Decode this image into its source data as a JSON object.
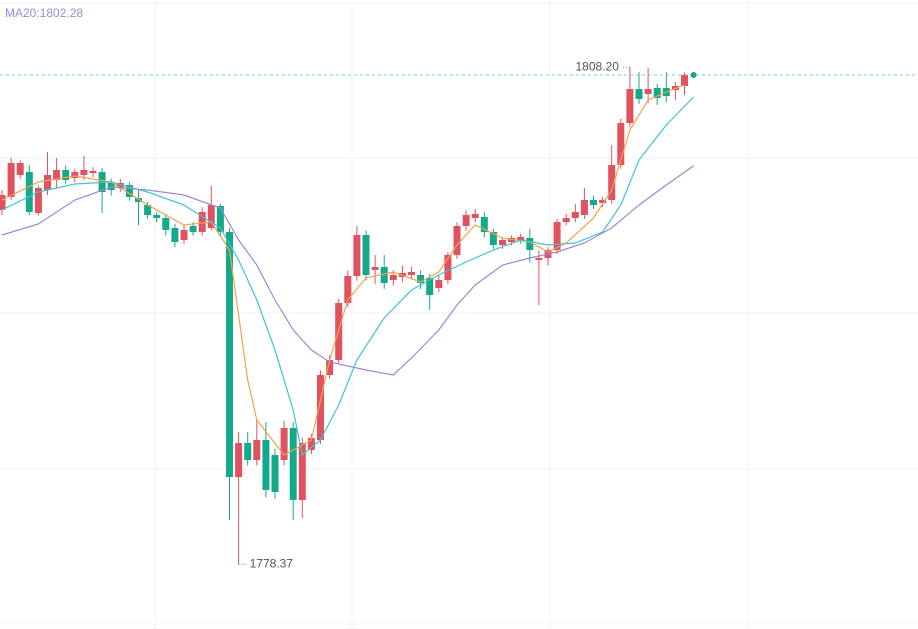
{
  "chart_data": {
    "type": "candlestick",
    "indicator_label": "MA20:1802.28",
    "xlim": [
      -0.22,
      100.66
    ],
    "ylim": [
      1774.49,
      1812.23
    ],
    "up_color": "#e0525f",
    "down_color": "#14a98b",
    "open": [
      1799.63,
      1800.41,
      1801.73,
      1801.91,
      1799.45,
      1800.83,
      1801.43,
      1802.03,
      1801.55,
      1801.73,
      1801.85,
      1801.91,
      1801.25,
      1800.95,
      1801.13,
      1800.35,
      1799.93,
      1799.33,
      1799.15,
      1798.55,
      1797.83,
      1798.67,
      1798.31,
      1798.55,
      1799.87,
      1798.31,
      1783.61,
      1785.65,
      1784.63,
      1785.83,
      1784.93,
      1784.63,
      1786.55,
      1782.23,
      1785.23,
      1785.83,
      1789.73,
      1790.63,
      1794.05,
      1795.67,
      1798.13,
      1796.03,
      1796.21,
      1795.43,
      1795.61,
      1795.73,
      1795.73,
      1795.55,
      1794.95,
      1795.43,
      1796.93,
      1798.67,
      1799.15,
      1799.21,
      1798.31,
      1797.53,
      1797.71,
      1797.83,
      1797.95,
      1796.63,
      1796.75,
      1797.23,
      1798.91,
      1799.15,
      1799.33,
      1800.23,
      1800.05,
      1800.23,
      1802.33,
      1804.85,
      1806.89,
      1806.59,
      1806.95,
      1806.95,
      1806.83,
      1807.07
    ],
    "high": [
      1800.83,
      1802.75,
      1802.6,
      1802.33,
      1801.1,
      1803.11,
      1802.75,
      1802.3,
      1802.1,
      1802.87,
      1802.2,
      1802.15,
      1801.5,
      1801.5,
      1801.3,
      1800.83,
      1800.1,
      1799.5,
      1799.4,
      1798.8,
      1798.7,
      1798.9,
      1799.8,
      1801.07,
      1800.0,
      1798.55,
      1786.31,
      1786.3,
      1787.03,
      1786.91,
      1785.3,
      1787.0,
      1786.9,
      1786.0,
      1786.2,
      1790.0,
      1790.9,
      1794.3,
      1796.0,
      1798.67,
      1798.4,
      1796.93,
      1796.93,
      1796.0,
      1796.3,
      1796.2,
      1796.0,
      1795.8,
      1795.7,
      1797.1,
      1798.9,
      1799.6,
      1799.7,
      1799.5,
      1798.5,
      1798.0,
      1798.1,
      1798.2,
      1798.5,
      1797.2,
      1797.4,
      1799.1,
      1799.4,
      1800.0,
      1800.95,
      1800.5,
      1800.4,
      1803.53,
      1805.1,
      1808.2,
      1807.9,
      1808.15,
      1807.2,
      1807.91,
      1807.3,
      1807.9
    ],
    "low": [
      1799.33,
      1800.23,
      1801.5,
      1799.33,
      1799.3,
      1800.53,
      1800.95,
      1801.2,
      1801.3,
      1801.43,
      1801.6,
      1799.45,
      1800.5,
      1800.7,
      1800.2,
      1798.73,
      1799.1,
      1798.9,
      1798.1,
      1797.4,
      1797.6,
      1798.1,
      1798.1,
      1798.43,
      1798.1,
      1781.03,
      1778.37,
      1784.3,
      1784.3,
      1782.4,
      1782.3,
      1784.3,
      1781.03,
      1781.15,
      1785.0,
      1785.6,
      1789.5,
      1790.4,
      1793.8,
      1795.4,
      1795.4,
      1795.2,
      1794.9,
      1795.1,
      1795.3,
      1795.5,
      1794.9,
      1793.63,
      1794.7,
      1795.2,
      1796.7,
      1798.4,
      1798.9,
      1798.0,
      1797.3,
      1797.3,
      1797.5,
      1797.6,
      1796.51,
      1793.93,
      1796.3,
      1797.0,
      1798.7,
      1798.9,
      1799.1,
      1799.7,
      1799.8,
      1800.0,
      1802.1,
      1804.6,
      1806.0,
      1806.05,
      1805.93,
      1806.1,
      1806.23,
      1806.53
    ],
    "close": [
      1800.53,
      1802.45,
      1802.45,
      1799.51,
      1800.95,
      1801.73,
      1802.03,
      1801.43,
      1801.91,
      1802.03,
      1801.97,
      1800.71,
      1800.83,
      1801.25,
      1800.41,
      1800.11,
      1799.33,
      1799.15,
      1798.43,
      1797.71,
      1798.43,
      1798.31,
      1799.51,
      1799.93,
      1798.31,
      1783.61,
      1785.65,
      1784.63,
      1785.83,
      1782.83,
      1782.71,
      1786.55,
      1782.23,
      1785.65,
      1785.95,
      1789.73,
      1790.63,
      1794.05,
      1795.67,
      1798.13,
      1795.73,
      1796.21,
      1795.25,
      1795.73,
      1795.85,
      1795.91,
      1795.25,
      1794.53,
      1795.43,
      1796.93,
      1798.67,
      1799.33,
      1799.39,
      1798.31,
      1797.53,
      1797.83,
      1797.95,
      1798.01,
      1797.23,
      1796.75,
      1797.23,
      1798.91,
      1799.15,
      1799.51,
      1800.23,
      1799.93,
      1800.23,
      1802.33,
      1804.85,
      1806.89,
      1806.29,
      1806.89,
      1806.35,
      1806.47,
      1807.07,
      1807.73
    ],
    "lines": [
      {
        "color": "#f4a14c",
        "x": [
          0,
          4,
          8,
          12,
          16,
          20,
          23,
          25,
          27,
          28,
          31,
          34,
          36,
          38,
          40,
          43,
          46,
          48,
          50,
          52,
          55,
          58,
          60,
          62,
          65,
          67,
          69,
          71,
          73,
          75
        ],
        "values": [
          1800.23,
          1801.31,
          1801.67,
          1801.31,
          1799.93,
          1798.73,
          1798.91,
          1797.23,
          1789.43,
          1787.03,
          1784.93,
          1785.83,
          1790.63,
          1794.23,
          1795.55,
          1795.91,
          1795.31,
          1795.91,
          1797.53,
          1798.73,
          1797.95,
          1797.71,
          1797.11,
          1797.65,
          1799.15,
          1800.83,
          1804.43,
          1806.23,
          1806.71,
          1807.13
        ]
      },
      {
        "color": "#3ec5d2",
        "x": [
          0,
          4,
          8,
          12,
          16,
          20,
          24,
          26,
          28,
          30,
          32,
          33,
          35,
          37,
          39,
          42,
          45,
          48,
          51,
          54,
          57,
          60,
          63,
          66,
          68,
          70,
          73,
          76
        ],
        "values": [
          1799.63,
          1800.71,
          1801.19,
          1801.31,
          1800.71,
          1799.93,
          1798.55,
          1796.63,
          1794.23,
          1791.23,
          1787.63,
          1784.93,
          1785.83,
          1787.93,
          1790.63,
          1793.15,
          1794.83,
          1795.73,
          1796.51,
          1797.23,
          1797.83,
          1797.53,
          1797.65,
          1798.31,
          1799.93,
          1802.63,
          1804.73,
          1806.41
        ]
      },
      {
        "color": "#9c88d8",
        "x": [
          0,
          4,
          8,
          12,
          16,
          20,
          24,
          26,
          28,
          30,
          32,
          34,
          36,
          38,
          40,
          43,
          45,
          48,
          50,
          52,
          55,
          58,
          61,
          64,
          67,
          70,
          73,
          76
        ],
        "values": [
          1798.13,
          1798.79,
          1800.23,
          1801.01,
          1800.83,
          1800.53,
          1799.75,
          1797.83,
          1796.33,
          1794.23,
          1792.43,
          1791.23,
          1790.51,
          1790.27,
          1790.03,
          1789.73,
          1790.75,
          1792.43,
          1793.93,
          1795.13,
          1796.33,
          1796.75,
          1797.11,
          1797.65,
          1798.55,
          1799.93,
          1801.13,
          1802.28
        ]
      }
    ],
    "annotations": [
      {
        "text": "1808.20",
        "value": 1808.2,
        "side": "left"
      },
      {
        "text": "1778.37",
        "value": 1778.37,
        "side": "right"
      }
    ]
  }
}
